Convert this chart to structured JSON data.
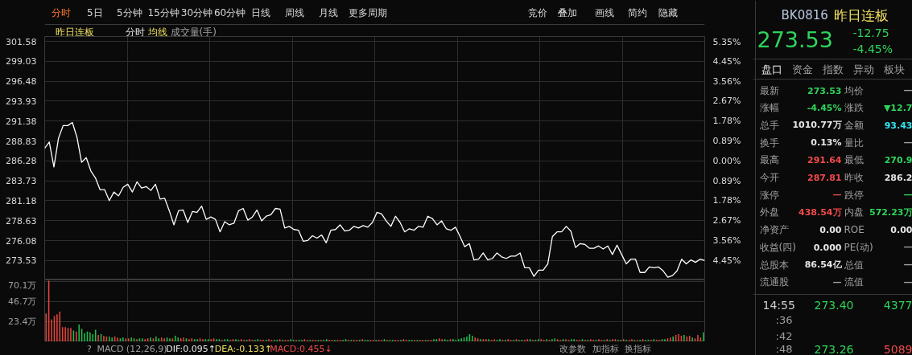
{
  "chart_data": [
    {
      "type": "line",
      "title": "昨日连板",
      "annotations": [
        "分时",
        "均线",
        "成交量(手)",
        "分时",
        "5日",
        "5分钟",
        "15分钟",
        "30分钟",
        "60分钟",
        "日线",
        "周线",
        "月线",
        "更多周期",
        "竞价",
        "叠加",
        "画线",
        "简约",
        "隐藏"
      ],
      "series": [
        {
          "color": "#ffffff",
          "values": [
            287.9,
            288.7,
            285.5,
            289.2,
            290.8,
            290.8,
            291.2,
            289.3,
            286.1,
            286.7,
            285.0,
            284.1,
            282.6,
            282.6,
            281.2,
            282.3,
            281.8,
            282.9,
            283.3,
            282.3,
            283.6,
            282.8,
            283.0,
            282.5,
            283.3,
            281.4,
            281.5,
            279.9,
            278.1,
            279.9,
            280.0,
            278.4,
            279.8,
            279.7,
            280.5,
            278.8,
            279.1,
            278.8,
            277.2,
            278.5,
            278.1,
            278.3,
            279.9,
            280.2,
            278.7,
            279.1,
            280.0,
            278.6,
            279.2,
            279.4,
            280.2,
            280.1,
            277.7,
            277.9,
            277.5,
            277.4,
            276.0,
            276.1,
            276.7,
            276.4,
            276.8,
            275.8,
            277.4,
            277.5,
            278.1,
            277.3,
            277.4,
            277.9,
            277.7,
            278.0,
            277.8,
            278.4,
            279.7,
            279.5,
            278.6,
            277.9,
            279.2,
            278.4,
            277.2,
            277.6,
            277.4,
            277.9,
            277.8,
            279.2,
            278.9,
            278.1,
            278.6,
            277.6,
            277.4,
            277.8,
            276.6,
            275.3,
            275.7,
            273.6,
            273.7,
            274.5,
            273.6,
            273.8,
            274.5,
            274.0,
            273.8,
            274.1,
            274.1,
            274.5,
            272.6,
            272.6,
            271.5,
            272.3,
            272.3,
            273.1,
            276.6,
            277.2,
            277.2,
            277.9,
            277.3,
            275.2,
            275.7,
            275.6,
            275.1,
            275.1,
            275.4,
            275.0,
            275.4,
            274.3,
            275.5,
            274.3,
            273.1,
            273.7,
            273.7,
            272.0,
            272.0,
            272.7,
            272.6,
            272.7,
            272.2,
            271.4,
            271.6,
            272.2,
            273.7,
            273.1,
            273.6,
            273.3,
            273.7,
            273.53
          ]
        }
      ],
      "categories": [
        null,
        null,
        null,
        null,
        null,
        null,
        null,
        null,
        null,
        null,
        null,
        null,
        null,
        null,
        null,
        null,
        null,
        null,
        null,
        null,
        null,
        null,
        null,
        null,
        null,
        null,
        null,
        null,
        null,
        null,
        null,
        null,
        null,
        null,
        null,
        null,
        null,
        null,
        null,
        null,
        null,
        null,
        null,
        null,
        null,
        null,
        null,
        null,
        null,
        null,
        null,
        null,
        null,
        null,
        null,
        null,
        null,
        null,
        null,
        null,
        null,
        null,
        null,
        null,
        null,
        null,
        null,
        null,
        null,
        null,
        null,
        null,
        null,
        null,
        null,
        null,
        null,
        null,
        null,
        null,
        null,
        null,
        null,
        null,
        null,
        null,
        null,
        null,
        null,
        null,
        null,
        null,
        null,
        null,
        null,
        null,
        null,
        null,
        null,
        null,
        null,
        null,
        null,
        null,
        null,
        null,
        null,
        null,
        null,
        null,
        null,
        null,
        null,
        null,
        null,
        null,
        null,
        null,
        null,
        null,
        null,
        null,
        null,
        null,
        null,
        null,
        null,
        null,
        null,
        null,
        null,
        null,
        null,
        null,
        null,
        null,
        null,
        null,
        null,
        null,
        null,
        null,
        null,
        null
      ],
      "ylim": [
        271.05,
        302.2
      ],
      "yticks": [
        301.58,
        299.03,
        296.48,
        293.93,
        291.38,
        288.83,
        286.28,
        283.73,
        281.18,
        278.63,
        276.08,
        273.53
      ],
      "y2lim": [
        -5.32,
        5.56
      ],
      "y2ticks": [
        {
          "value": 5.35,
          "label": "5.35%"
        },
        {
          "value": 4.45,
          "label": "4.45%"
        },
        {
          "value": 3.56,
          "label": "3.56%"
        },
        {
          "value": 2.67,
          "label": "2.67%"
        },
        {
          "value": 1.78,
          "label": "1.78%"
        },
        {
          "value": 0.89,
          "label": "0.89%"
        },
        {
          "value": 0,
          "label": "0.00%"
        },
        {
          "value": -0.89,
          "label": "0.89%"
        },
        {
          "value": -1.78,
          "label": "1.78%"
        },
        {
          "value": -2.67,
          "label": "2.67%"
        },
        {
          "value": -3.56,
          "label": "3.56%"
        },
        {
          "value": -4.45,
          "label": "4.45%"
        }
      ],
      "grid": true,
      "tick_labels": "y"
    },
    {
      "type": "bar",
      "categories": [
        null,
        null,
        null,
        null,
        null,
        null,
        null,
        null,
        null,
        null,
        null,
        null,
        null,
        null,
        null,
        null,
        null,
        null,
        null,
        null,
        null,
        null,
        null,
        null,
        null,
        null,
        null,
        null,
        null,
        null,
        null,
        null,
        null,
        null,
        null,
        null,
        null,
        null,
        null,
        null,
        null,
        null,
        null,
        null,
        null,
        null,
        null,
        null,
        null,
        null,
        null,
        null,
        null,
        null,
        null,
        null,
        null,
        null,
        null,
        null,
        null,
        null,
        null,
        null,
        null,
        null,
        null,
        null,
        null,
        null,
        null,
        null,
        null,
        null,
        null,
        null,
        null,
        null,
        null,
        null,
        null,
        null,
        null,
        null,
        null,
        null,
        null,
        null,
        null,
        null,
        null,
        null,
        null,
        null,
        null,
        null,
        null,
        null,
        null,
        null,
        null,
        null,
        null,
        null,
        null,
        null,
        null,
        null,
        null,
        null,
        null,
        null,
        null,
        null,
        null,
        null,
        null,
        null,
        null,
        null,
        null,
        null,
        null,
        null,
        null,
        null,
        null,
        null,
        null,
        null,
        null,
        null,
        null,
        null,
        null,
        null,
        null,
        null,
        null,
        null,
        null,
        null,
        null,
        null,
        null,
        null,
        null,
        null,
        null,
        null,
        null,
        null,
        null,
        null,
        null,
        null,
        null,
        null,
        null,
        null,
        null,
        null,
        null,
        null,
        null,
        null,
        null,
        null,
        null,
        null,
        null,
        null,
        null,
        null,
        null,
        null,
        null,
        null,
        null,
        null,
        null,
        null,
        null,
        null,
        null,
        null,
        null,
        null,
        null,
        null,
        null,
        null,
        null,
        null,
        null,
        null,
        null,
        null,
        null,
        null,
        null,
        null,
        null,
        null,
        null,
        null,
        null,
        null,
        null,
        null,
        null,
        null,
        null,
        null,
        null,
        null,
        null,
        null,
        null,
        null,
        null,
        null,
        null,
        null,
        null,
        null,
        null,
        null,
        null,
        null,
        null,
        null,
        null,
        null,
        null,
        null,
        null,
        null,
        null,
        null
      ],
      "values": [
        33,
        71,
        26,
        30,
        32,
        35,
        17,
        17,
        16,
        16,
        13,
        12,
        20,
        15,
        10,
        12,
        11,
        9,
        14,
        8,
        9,
        7,
        6,
        6,
        5,
        6,
        5,
        4,
        5,
        4,
        4,
        5,
        4,
        3,
        4,
        4,
        3,
        4,
        5,
        4,
        6,
        4,
        5,
        4,
        5,
        4,
        4,
        7,
        5,
        4,
        5,
        4,
        3,
        4,
        3,
        3,
        4,
        3,
        3,
        3,
        3,
        4,
        3,
        3,
        2,
        3,
        3,
        2,
        3,
        3,
        2,
        3,
        2,
        2,
        3,
        2,
        2,
        3,
        2,
        2,
        2,
        3,
        2,
        2,
        2,
        3,
        2,
        2,
        2,
        3,
        2,
        2,
        2,
        2,
        3,
        2,
        2,
        2,
        2,
        2,
        2,
        2,
        3,
        2,
        2,
        2,
        2,
        2,
        2,
        3,
        2,
        2,
        2,
        2,
        2,
        3,
        2,
        2,
        2,
        2,
        2,
        2,
        2,
        3,
        2,
        2,
        2,
        2,
        2,
        2,
        3,
        2,
        2,
        2,
        2,
        2,
        2,
        2,
        2,
        2,
        2,
        3,
        3,
        4,
        3,
        3,
        2,
        3,
        3,
        2,
        3,
        4,
        5,
        6,
        9,
        7,
        5,
        4,
        3,
        3,
        3,
        3,
        2,
        3,
        2,
        3,
        2,
        2,
        3,
        2,
        2,
        3,
        2,
        2,
        2,
        3,
        3,
        2,
        2,
        3,
        3,
        2,
        3,
        2,
        3,
        4,
        3,
        2,
        3,
        3,
        2,
        3,
        3,
        2,
        2,
        3,
        2,
        2,
        3,
        2,
        2,
        3,
        2,
        2,
        3,
        2,
        3,
        3,
        2,
        2,
        3,
        2,
        2,
        3,
        2,
        2,
        2,
        3,
        2,
        2,
        2,
        3,
        2,
        2,
        3,
        3,
        4,
        5,
        6,
        8,
        9,
        7,
        8,
        6,
        7,
        5,
        4,
        8,
        5,
        11
      ],
      "colors": [
        "#e8453c",
        "#e8453c",
        "#e8453c",
        "#e8453c",
        "#e8453c",
        "#e8453c",
        "#e8453c",
        "#e8453c",
        "#e8453c",
        "#e8453c",
        "#1ec04a",
        "#e8453c",
        "#1ec04a",
        "#1ec04a",
        "#1ec04a",
        "#1ec04a",
        "#1ec04a",
        "#1ec04a",
        "#1ec04a",
        "#e8453c",
        "#1ec04a",
        "#e8453c",
        "#e8453c",
        "#1ec04a",
        "#1ec04a",
        "#e8453c",
        "#e8453c",
        "#1ec04a",
        "#1ec04a",
        "#e8453c",
        "#e8453c",
        "#1ec04a",
        "#1ec04a",
        "#e8453c",
        "#1ec04a",
        "#1ec04a",
        "#e8453c",
        "#e8453c",
        "#1ec04a",
        "#e8453c",
        "#1ec04a",
        "#1ec04a",
        "#e8453c",
        "#e8453c",
        "#1ec04a",
        "#1ec04a",
        "#e8453c",
        "#1ec04a",
        "#1ec04a",
        "#e8453c",
        "#e8453c",
        "#1ec04a",
        "#e8453c",
        "#e8453c",
        "#1ec04a",
        "#1ec04a",
        "#e8453c",
        "#e8453c",
        "#1ec04a",
        "#1ec04a",
        "#e8453c",
        "#e8453c",
        "#1ec04a",
        "#1ec04a",
        "#e8453c",
        "#1ec04a",
        "#1ec04a",
        "#e8453c",
        "#e8453c",
        "#1ec04a",
        "#1ec04a",
        "#e8453c",
        "#e8453c",
        "#1ec04a",
        "#e8453c",
        "#e8453c",
        "#1ec04a",
        "#1ec04a",
        "#e8453c",
        "#e8453c",
        "#1ec04a",
        "#e8453c",
        "#e8453c",
        "#1ec04a",
        "#1ec04a",
        "#e8453c",
        "#1ec04a",
        "#e8453c",
        "#e8453c",
        "#1ec04a",
        "#1ec04a",
        "#e8453c",
        "#1ec04a",
        "#1ec04a",
        "#e8453c",
        "#e8453c",
        "#1ec04a",
        "#e8453c",
        "#e8453c",
        "#1ec04a",
        "#e8453c",
        "#1ec04a",
        "#1ec04a",
        "#e8453c",
        "#e8453c",
        "#1ec04a",
        "#e8453c",
        "#e8453c",
        "#1ec04a",
        "#1ec04a",
        "#e8453c",
        "#1ec04a",
        "#e8453c",
        "#e8453c",
        "#1ec04a",
        "#e8453c",
        "#1ec04a",
        "#1ec04a",
        "#e8453c",
        "#e8453c",
        "#1ec04a",
        "#e8453c",
        "#e8453c",
        "#1ec04a",
        "#e8453c",
        "#1ec04a",
        "#1ec04a",
        "#e8453c",
        "#e8453c",
        "#1ec04a",
        "#e8453c",
        "#e8453c",
        "#1ec04a",
        "#1ec04a",
        "#e8453c",
        "#1ec04a",
        "#e8453c",
        "#e8453c",
        "#1ec04a",
        "#e8453c",
        "#e8453c",
        "#1ec04a",
        "#1ec04a",
        "#e8453c",
        "#e8453c",
        "#1ec04a",
        "#1ec04a",
        "#e8453c",
        "#1ec04a",
        "#1ec04a",
        "#1ec04a",
        "#1ec04a",
        "#1ec04a",
        "#1ec04a",
        "#1ec04a",
        "#1ec04a",
        "#e8453c",
        "#e8453c",
        "#1ec04a",
        "#e8453c",
        "#e8453c",
        "#1ec04a",
        "#e8453c",
        "#e8453c",
        "#1ec04a",
        "#1ec04a",
        "#e8453c",
        "#1ec04a",
        "#e8453c",
        "#e8453c",
        "#1ec04a",
        "#e8453c",
        "#1ec04a",
        "#1ec04a",
        "#e8453c",
        "#e8453c",
        "#1ec04a",
        "#e8453c",
        "#1ec04a",
        "#1ec04a",
        "#e8453c",
        "#e8453c",
        "#1ec04a",
        "#e8453c",
        "#1ec04a",
        "#1ec04a",
        "#e8453c",
        "#e8453c",
        "#1ec04a",
        "#e8453c",
        "#e8453c",
        "#1ec04a",
        "#1ec04a",
        "#e8453c",
        "#e8453c",
        "#1ec04a",
        "#e8453c",
        "#1ec04a",
        "#e8453c",
        "#e8453c",
        "#1ec04a",
        "#e8453c",
        "#e8453c",
        "#1ec04a",
        "#e8453c",
        "#1ec04a",
        "#e8453c",
        "#e8453c",
        "#1ec04a",
        "#1ec04a",
        "#e8453c",
        "#1ec04a",
        "#e8453c",
        "#e8453c",
        "#1ec04a",
        "#e8453c",
        "#1ec04a",
        "#e8453c",
        "#1ec04a",
        "#1ec04a",
        "#e8453c",
        "#1ec04a",
        "#e8453c",
        "#e8453c",
        "#1ec04a",
        "#1ec04a",
        "#e8453c",
        "#e8453c",
        "#1ec04a",
        "#e8453c",
        "#e8453c",
        "#e8453c",
        "#1ec04a",
        "#e8453c",
        "#e8453c",
        "#1ec04a",
        "#e8453c",
        "#e8453c",
        "#e8453c",
        "#1ec04a"
      ],
      "ylim": [
        0,
        72
      ],
      "yticks": [
        {
          "value": 23.4,
          "label": "23.4万"
        },
        {
          "value": 46.7,
          "label": "46.7万"
        },
        {
          "value": 70.1,
          "label": "70.1万"
        }
      ],
      "annotations": [
        "?",
        "MACD (12,26,9)",
        "DIF:0.095↑",
        "DEA:-0.133↑",
        "MACD:0.455↓",
        "改参数",
        "加指标",
        "换指标"
      ],
      "grid": true,
      "tick_labels": "y"
    },
    {
      "type": "other",
      "annotations": [
        "BK0816",
        "昨日连板",
        "273.53",
        "-12.75",
        "-4.45%",
        "盘口",
        "资金",
        "指数",
        "异动",
        "板块",
        "最新",
        "273.53",
        "均价",
        "—",
        "涨幅",
        "-4.45%",
        "涨跌",
        "▼12.7",
        "总手",
        "1010.77万",
        "金额",
        "93.43",
        "换手",
        "0.13%",
        "量比",
        "—",
        "最高",
        "291.64",
        "最低",
        "270.9",
        "今开",
        "287.81",
        "昨收",
        "286.2",
        "涨停",
        "—",
        "跌停",
        "—",
        "外盘",
        "438.54万",
        "内盘",
        "572.23万",
        "净资产",
        "0.00",
        "ROE",
        "0.00",
        "收益(四)",
        "0.000",
        "PE(动)",
        "—",
        "总股本",
        "86.54亿",
        "总值",
        "—",
        "流通股",
        "—",
        "流值",
        "—",
        "14:55",
        "273.40",
        "4377",
        ":36",
        ":42",
        ":48",
        "273.26",
        "5089"
      ]
    }
  ]
}
